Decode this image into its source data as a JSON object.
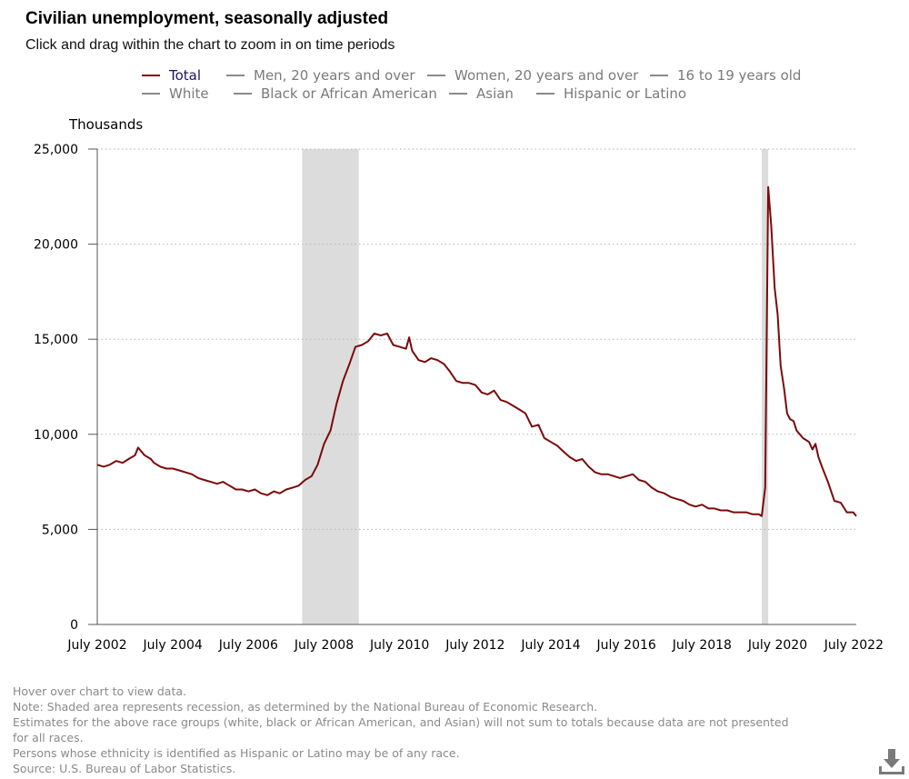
{
  "header": {
    "title": "Civilian unemployment, seasonally adjusted",
    "subtitle": "Click and drag within the chart to zoom in on time periods"
  },
  "legend": [
    {
      "label": "Total",
      "active": true
    },
    {
      "label": "Men, 20 years and over",
      "active": false
    },
    {
      "label": "Women, 20 years and over",
      "active": false
    },
    {
      "label": "16 to 19 years old",
      "active": false
    },
    {
      "label": "White",
      "active": false
    },
    {
      "label": "Black or African American",
      "active": false
    },
    {
      "label": "Asian",
      "active": false
    },
    {
      "label": "Hispanic or Latino",
      "active": false
    }
  ],
  "notes": {
    "hover": "Hover over chart to view data.",
    "note": "Note: Shaded area represents recession, as determined by the National Bureau of Economic Research.",
    "estimates": "Estimates for the above race groups (white, black or African American, and Asian) will not sum to totals because data are not presented for all races.",
    "hispanic": "Persons whose ethnicity is identified as Hispanic or Latino may be of any race.",
    "source": "Source: U.S. Bureau of Labor Statistics."
  },
  "icons": {
    "download": "download-icon"
  },
  "colors": {
    "total_line": "#7b0a0a",
    "recession": "#dcdcdc",
    "grid": "#b5b5b5",
    "legend_active": "#1a1464"
  },
  "chart_data": {
    "type": "line",
    "ylabel": "Thousands",
    "xlabel": "",
    "ylim": [
      0,
      25000
    ],
    "yticks": [
      0,
      5000,
      10000,
      15000,
      20000,
      25000
    ],
    "ytick_labels": [
      "0",
      "5,000",
      "10,000",
      "15,000",
      "20,000",
      "25,000"
    ],
    "xlim": [
      2002.5,
      2022.58
    ],
    "xticks": [
      2002.5,
      2004.5,
      2006.5,
      2008.5,
      2010.5,
      2012.5,
      2014.5,
      2016.5,
      2018.5,
      2020.5,
      2022.5
    ],
    "xtick_labels": [
      "July 2002",
      "July 2004",
      "July 2006",
      "July 2008",
      "July 2010",
      "July 2012",
      "July 2014",
      "July 2016",
      "July 2018",
      "July 2020",
      "July 2022"
    ],
    "recessions": [
      {
        "start": 2007.92,
        "end": 2009.42
      },
      {
        "start": 2020.08,
        "end": 2020.25
      }
    ],
    "series": [
      {
        "name": "Total",
        "points": [
          [
            2002.5,
            8400
          ],
          [
            2002.67,
            8300
          ],
          [
            2002.83,
            8400
          ],
          [
            2003.0,
            8600
          ],
          [
            2003.17,
            8500
          ],
          [
            2003.33,
            8700
          ],
          [
            2003.5,
            8900
          ],
          [
            2003.58,
            9300
          ],
          [
            2003.75,
            8900
          ],
          [
            2003.92,
            8700
          ],
          [
            2004.0,
            8500
          ],
          [
            2004.17,
            8300
          ],
          [
            2004.33,
            8200
          ],
          [
            2004.5,
            8200
          ],
          [
            2004.67,
            8100
          ],
          [
            2004.83,
            8000
          ],
          [
            2005.0,
            7900
          ],
          [
            2005.17,
            7700
          ],
          [
            2005.33,
            7600
          ],
          [
            2005.5,
            7500
          ],
          [
            2005.67,
            7400
          ],
          [
            2005.83,
            7500
          ],
          [
            2006.0,
            7300
          ],
          [
            2006.17,
            7100
          ],
          [
            2006.33,
            7100
          ],
          [
            2006.5,
            7000
          ],
          [
            2006.67,
            7100
          ],
          [
            2006.83,
            6900
          ],
          [
            2007.0,
            6800
          ],
          [
            2007.17,
            7000
          ],
          [
            2007.33,
            6900
          ],
          [
            2007.5,
            7100
          ],
          [
            2007.67,
            7200
          ],
          [
            2007.83,
            7300
          ],
          [
            2008.0,
            7600
          ],
          [
            2008.17,
            7800
          ],
          [
            2008.33,
            8400
          ],
          [
            2008.5,
            9500
          ],
          [
            2008.67,
            10200
          ],
          [
            2008.83,
            11600
          ],
          [
            2009.0,
            12800
          ],
          [
            2009.17,
            13700
          ],
          [
            2009.33,
            14600
          ],
          [
            2009.5,
            14700
          ],
          [
            2009.67,
            14900
          ],
          [
            2009.83,
            15300
          ],
          [
            2010.0,
            15200
          ],
          [
            2010.17,
            15300
          ],
          [
            2010.33,
            14700
          ],
          [
            2010.5,
            14600
          ],
          [
            2010.67,
            14500
          ],
          [
            2010.75,
            15100
          ],
          [
            2010.83,
            14400
          ],
          [
            2011.0,
            13900
          ],
          [
            2011.17,
            13800
          ],
          [
            2011.33,
            14000
          ],
          [
            2011.5,
            13900
          ],
          [
            2011.67,
            13700
          ],
          [
            2011.83,
            13300
          ],
          [
            2012.0,
            12800
          ],
          [
            2012.17,
            12700
          ],
          [
            2012.33,
            12700
          ],
          [
            2012.5,
            12600
          ],
          [
            2012.67,
            12200
          ],
          [
            2012.83,
            12100
          ],
          [
            2013.0,
            12300
          ],
          [
            2013.17,
            11800
          ],
          [
            2013.33,
            11700
          ],
          [
            2013.5,
            11500
          ],
          [
            2013.67,
            11300
          ],
          [
            2013.83,
            11100
          ],
          [
            2014.0,
            10400
          ],
          [
            2014.17,
            10500
          ],
          [
            2014.33,
            9800
          ],
          [
            2014.5,
            9600
          ],
          [
            2014.67,
            9400
          ],
          [
            2014.83,
            9100
          ],
          [
            2015.0,
            8800
          ],
          [
            2015.17,
            8600
          ],
          [
            2015.33,
            8700
          ],
          [
            2015.5,
            8300
          ],
          [
            2015.67,
            8000
          ],
          [
            2015.83,
            7900
          ],
          [
            2016.0,
            7900
          ],
          [
            2016.17,
            7800
          ],
          [
            2016.33,
            7700
          ],
          [
            2016.5,
            7800
          ],
          [
            2016.67,
            7900
          ],
          [
            2016.83,
            7600
          ],
          [
            2017.0,
            7500
          ],
          [
            2017.17,
            7200
          ],
          [
            2017.33,
            7000
          ],
          [
            2017.5,
            6900
          ],
          [
            2017.67,
            6700
          ],
          [
            2017.83,
            6600
          ],
          [
            2018.0,
            6500
          ],
          [
            2018.17,
            6300
          ],
          [
            2018.33,
            6200
          ],
          [
            2018.5,
            6300
          ],
          [
            2018.67,
            6100
          ],
          [
            2018.83,
            6100
          ],
          [
            2019.0,
            6000
          ],
          [
            2019.17,
            6000
          ],
          [
            2019.33,
            5900
          ],
          [
            2019.5,
            5900
          ],
          [
            2019.67,
            5900
          ],
          [
            2019.83,
            5800
          ],
          [
            2020.0,
            5800
          ],
          [
            2020.08,
            5700
          ],
          [
            2020.17,
            7200
          ],
          [
            2020.25,
            23000
          ],
          [
            2020.33,
            21000
          ],
          [
            2020.42,
            17700
          ],
          [
            2020.5,
            16300
          ],
          [
            2020.58,
            13600
          ],
          [
            2020.67,
            12400
          ],
          [
            2020.75,
            11100
          ],
          [
            2020.83,
            10800
          ],
          [
            2020.92,
            10700
          ],
          [
            2021.0,
            10200
          ],
          [
            2021.17,
            9800
          ],
          [
            2021.33,
            9600
          ],
          [
            2021.42,
            9200
          ],
          [
            2021.5,
            9500
          ],
          [
            2021.58,
            8800
          ],
          [
            2021.67,
            8300
          ],
          [
            2021.83,
            7500
          ],
          [
            2022.0,
            6500
          ],
          [
            2022.17,
            6400
          ],
          [
            2022.33,
            5900
          ],
          [
            2022.5,
            5900
          ],
          [
            2022.58,
            5700
          ]
        ]
      }
    ]
  }
}
